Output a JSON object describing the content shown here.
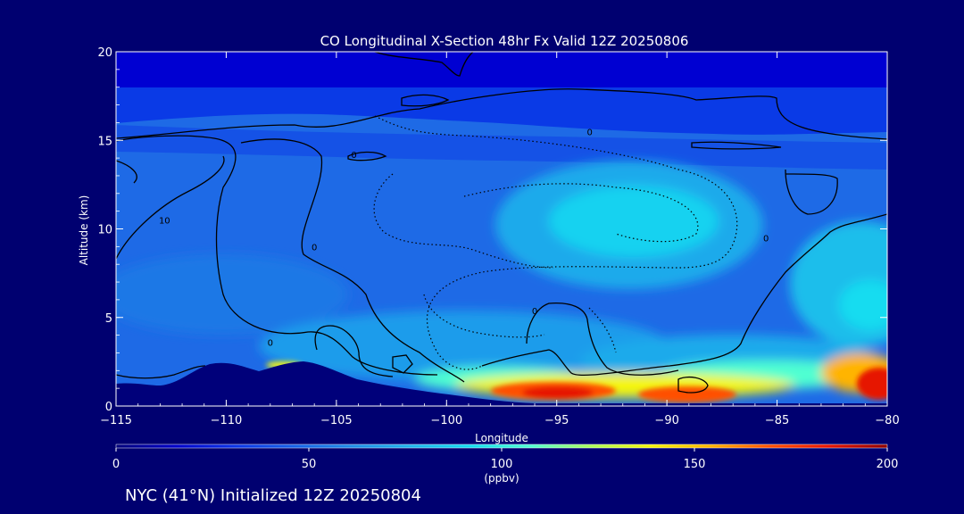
{
  "chart_data": {
    "type": "heatmap",
    "title": "CO Longitudinal X-Section 48hr  Fx Valid 12Z 20250806",
    "xlabel": "Longitude",
    "ylabel": "Altitude (km)",
    "xlim": [
      -115,
      -80
    ],
    "ylim": [
      0,
      20
    ],
    "x_ticks": [
      -115,
      -110,
      -105,
      -100,
      -95,
      -90,
      -85,
      -80
    ],
    "x_tick_labels": [
      "−115",
      "−110",
      "−105",
      "−100",
      "−95",
      "−90",
      "−85",
      "−80"
    ],
    "y_ticks": [
      0,
      5,
      10,
      15,
      20
    ],
    "y_tick_labels": [
      "0",
      "5",
      "10",
      "15",
      "20"
    ],
    "colorbar": {
      "min": 0,
      "max": 200,
      "ticks": [
        0,
        50,
        100,
        150,
        200
      ],
      "tick_labels": [
        "0",
        "50",
        "100",
        "150",
        "200"
      ],
      "unit_label": "(ppbv)",
      "colors": [
        "#00007a",
        "#0000c8",
        "#0a32e6",
        "#145fe6",
        "#1e8ce6",
        "#1eb4eb",
        "#14dcf0",
        "#50ffd2",
        "#aaff5a",
        "#f5f50a",
        "#ffb400",
        "#ff5000",
        "#e61400",
        "#8c0000"
      ]
    },
    "value_bands": [
      {
        "name": "upper-stratosphere",
        "alt_range": [
          18,
          20
        ],
        "co_ppbv": 8
      },
      {
        "name": "upper",
        "alt_range": [
          15.5,
          18
        ],
        "co_ppbv": 25
      },
      {
        "name": "upper-troposphere",
        "alt_range": [
          5,
          15.5
        ],
        "co_ppbv": 45
      },
      {
        "name": "cyan-blob",
        "center_lon": -90.5,
        "center_alt": 10.5,
        "co_ppbv": 90
      },
      {
        "name": "east-blob",
        "center_lon": -81,
        "center_alt": 5.5,
        "co_ppbv": 85
      },
      {
        "name": "boundary-layer-max",
        "center_lon": -95,
        "center_alt": 0.7,
        "co_ppbv": 175
      }
    ],
    "contour_labels": [
      {
        "text": "0",
        "lon": -104.2,
        "alt": 14
      },
      {
        "text": "0",
        "lon": -93.5,
        "alt": 15.3
      },
      {
        "text": "0",
        "lon": -106,
        "alt": 8.8
      },
      {
        "text": "0",
        "lon": -108,
        "alt": 3.4
      },
      {
        "text": "10",
        "lon": -112.8,
        "alt": 10.3
      },
      {
        "text": "0",
        "lon": -85.5,
        "alt": 9.3
      },
      {
        "text": "0",
        "lon": -96,
        "alt": 5.2
      }
    ],
    "footer": "NYC (41°N) Initialized 12Z 20250804"
  }
}
